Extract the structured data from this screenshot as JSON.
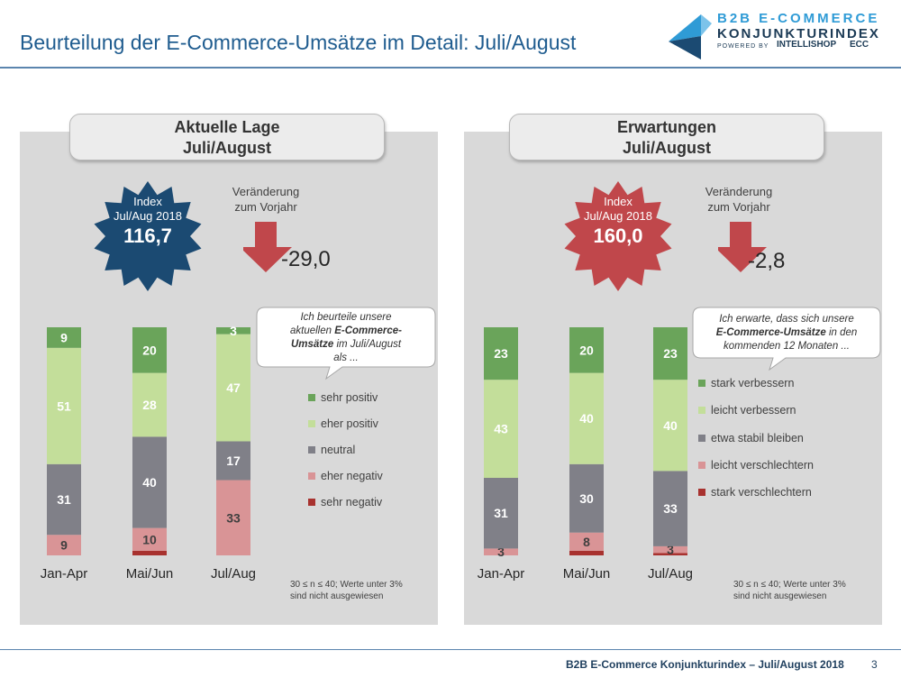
{
  "page": {
    "title": "Beurteilung der E-Commerce-Umsätze im Detail: Juli/August",
    "footer_text": "B2B E-Commerce Konjunkturindex – Juli/August 2018",
    "page_number": "3"
  },
  "logo": {
    "line1": "B2B E-COMMERCE",
    "line2": "KONJUNKTURINDEX",
    "powered_by": "POWERED BY",
    "partner1": "INTELLISHOP",
    "partner2": "ECC"
  },
  "colors": {
    "navy": "#1b4a72",
    "red": "#c0474b",
    "sehr_positiv": "#6aa45a",
    "eher_positiv": "#c3de9a",
    "neutral": "#808088",
    "eher_negativ": "#d99496",
    "sehr_negativ": "#a8322f",
    "arrow": "#c0474b"
  },
  "left": {
    "header_line1": "Aktuelle Lage",
    "header_line2": "Juli/August",
    "index_label1": "Index",
    "index_label2": "Jul/Aug 2018",
    "index_value": "116,7",
    "change_label1": "Veränderung",
    "change_label2": "zum Vorjahr",
    "change_value": "-29,0",
    "bubble_line1": "Ich beurteile unsere",
    "bubble_line2_a": "aktuellen ",
    "bubble_line2_b": "E-Commerce-",
    "bubble_line3_a": "Umsätze",
    "bubble_line3_b": " im Juli/August",
    "bubble_line4": "als ...",
    "legend": [
      "sehr positiv",
      "eher positiv",
      "neutral",
      "eher negativ",
      "sehr negativ"
    ],
    "footnote1": "30 ≤ n ≤ 40; Werte unter 3%",
    "footnote2": "sind nicht ausgewiesen"
  },
  "right": {
    "header_line1": "Erwartungen",
    "header_line2": "Juli/August",
    "index_label1": "Index",
    "index_label2": "Jul/Aug 2018",
    "index_value": "160,0",
    "change_label1": "Veränderung",
    "change_label2": "zum Vorjahr",
    "change_value": "-2,8",
    "bubble_line1": "Ich erwarte, dass sich unsere",
    "bubble_line2_a": "E-Commerce-Umsätze",
    "bubble_line2_b": " in den",
    "bubble_line3": "kommenden 12 Monaten  ...",
    "legend": [
      "stark verbessern",
      "leicht verbessern",
      "etwa stabil bleiben",
      "leicht verschlechtern",
      "stark verschlechtern"
    ],
    "footnote1": "30 ≤ n ≤ 40; Werte unter 3%",
    "footnote2": "sind nicht ausgewiesen"
  },
  "chart_data": [
    {
      "type": "bar",
      "stacked": true,
      "percent": true,
      "title": "Aktuelle Lage Juli/August",
      "categories": [
        "Jan-Apr",
        "Mai/Jun",
        "Jul/Aug"
      ],
      "series": [
        {
          "name": "sehr negativ",
          "values": [
            0,
            2,
            0
          ],
          "labels": [
            "",
            "",
            ""
          ]
        },
        {
          "name": "eher negativ",
          "values": [
            9,
            10,
            33
          ],
          "labels": [
            "9",
            "10",
            "33"
          ]
        },
        {
          "name": "neutral",
          "values": [
            31,
            40,
            17
          ],
          "labels": [
            "31",
            "40",
            "17"
          ]
        },
        {
          "name": "eher positiv",
          "values": [
            51,
            28,
            47
          ],
          "labels": [
            "51",
            "28",
            "47"
          ]
        },
        {
          "name": "sehr positiv",
          "values": [
            9,
            20,
            3
          ],
          "labels": [
            "9",
            "20",
            "3"
          ]
        }
      ]
    },
    {
      "type": "bar",
      "stacked": true,
      "percent": true,
      "title": "Erwartungen Juli/August",
      "categories": [
        "Jan-Apr",
        "Mai/Jun",
        "Jul/Aug"
      ],
      "series": [
        {
          "name": "stark verschlechtern",
          "values": [
            0,
            2,
            1
          ],
          "labels": [
            "",
            "",
            ""
          ]
        },
        {
          "name": "leicht verschlechtern",
          "values": [
            3,
            8,
            3
          ],
          "labels": [
            "3",
            "8",
            "3"
          ]
        },
        {
          "name": "etwa stabil bleiben",
          "values": [
            31,
            30,
            33
          ],
          "labels": [
            "31",
            "30",
            "33"
          ]
        },
        {
          "name": "leicht verbessern",
          "values": [
            43,
            40,
            40
          ],
          "labels": [
            "43",
            "40",
            "40"
          ]
        },
        {
          "name": "stark verbessern",
          "values": [
            23,
            20,
            23
          ],
          "labels": [
            "23",
            "20",
            "23"
          ]
        }
      ]
    }
  ]
}
